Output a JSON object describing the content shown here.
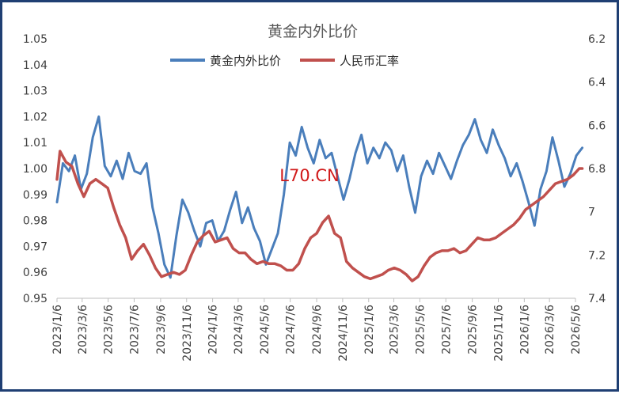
{
  "chart_data": {
    "type": "line",
    "title": "黄金内外比价",
    "watermark": "L70.CN",
    "legend_position": "top",
    "grid": false,
    "x_tick_labels": [
      "2023/1/6",
      "2023/3/6",
      "2023/5/6",
      "2023/7/6",
      "2023/9/6",
      "2023/11/6",
      "2024/1/6",
      "2024/3/6",
      "2024/5/6",
      "2024/7/6",
      "2024/9/6",
      "2024/11/6",
      "2025/1/6",
      "2025/3/6",
      "2025/5/6",
      "2025/7/6",
      "2025/9/6",
      "2025/11/6",
      "2026/1/6",
      "2026/3/6",
      "2026/5/6"
    ],
    "left_axis": {
      "min": 0.95,
      "max": 1.05,
      "tick_labels": [
        "1.05",
        "1.04",
        "1.03",
        "1.02",
        "1.01",
        "1.00",
        "0.99",
        "0.98",
        "0.97",
        "0.96",
        "0.95"
      ]
    },
    "right_axis": {
      "min": 6.2,
      "max": 7.4,
      "reversed": true,
      "tick_labels": [
        "6.2",
        "6.4",
        "6.6",
        "6.8",
        "7",
        "7.2",
        "7.4"
      ]
    },
    "series": [
      {
        "name": "黄金内外比价",
        "color": "#4a7ebb",
        "axis": "left",
        "points": [
          [
            "2023-01-06",
            0.987
          ],
          [
            "2023-01-20",
            1.002
          ],
          [
            "2023-02-03",
            0.999
          ],
          [
            "2023-02-17",
            1.005
          ],
          [
            "2023-03-03",
            0.992
          ],
          [
            "2023-03-17",
            0.998
          ],
          [
            "2023-03-31",
            1.012
          ],
          [
            "2023-04-14",
            1.02
          ],
          [
            "2023-04-28",
            1.001
          ],
          [
            "2023-05-12",
            0.997
          ],
          [
            "2023-05-26",
            1.003
          ],
          [
            "2023-06-09",
            0.996
          ],
          [
            "2023-06-23",
            1.006
          ],
          [
            "2023-07-07",
            0.999
          ],
          [
            "2023-07-21",
            0.998
          ],
          [
            "2023-08-04",
            1.002
          ],
          [
            "2023-08-18",
            0.985
          ],
          [
            "2023-09-01",
            0.975
          ],
          [
            "2023-09-15",
            0.963
          ],
          [
            "2023-09-29",
            0.958
          ],
          [
            "2023-10-13",
            0.974
          ],
          [
            "2023-10-27",
            0.988
          ],
          [
            "2023-11-10",
            0.983
          ],
          [
            "2023-11-24",
            0.976
          ],
          [
            "2023-12-08",
            0.97
          ],
          [
            "2023-12-22",
            0.979
          ],
          [
            "2024-01-05",
            0.98
          ],
          [
            "2024-01-19",
            0.972
          ],
          [
            "2024-02-02",
            0.976
          ],
          [
            "2024-02-16",
            0.984
          ],
          [
            "2024-03-01",
            0.991
          ],
          [
            "2024-03-15",
            0.979
          ],
          [
            "2024-03-29",
            0.985
          ],
          [
            "2024-04-12",
            0.977
          ],
          [
            "2024-04-26",
            0.972
          ],
          [
            "2024-05-10",
            0.963
          ],
          [
            "2024-05-24",
            0.969
          ],
          [
            "2024-06-07",
            0.975
          ],
          [
            "2024-06-21",
            0.99
          ],
          [
            "2024-07-05",
            1.01
          ],
          [
            "2024-07-19",
            1.005
          ],
          [
            "2024-08-02",
            1.016
          ],
          [
            "2024-08-16",
            1.008
          ],
          [
            "2024-08-30",
            1.002
          ],
          [
            "2024-09-13",
            1.011
          ],
          [
            "2024-09-27",
            1.004
          ],
          [
            "2024-10-11",
            1.006
          ],
          [
            "2024-10-25",
            0.997
          ],
          [
            "2024-11-08",
            0.988
          ],
          [
            "2024-11-22",
            0.996
          ],
          [
            "2024-12-06",
            1.006
          ],
          [
            "2024-12-20",
            1.013
          ],
          [
            "2025-01-03",
            1.002
          ],
          [
            "2025-01-17",
            1.008
          ],
          [
            "2025-01-31",
            1.004
          ],
          [
            "2025-02-14",
            1.01
          ],
          [
            "2025-02-28",
            1.007
          ],
          [
            "2025-03-14",
            0.999
          ],
          [
            "2025-03-28",
            1.005
          ],
          [
            "2025-04-11",
            0.993
          ],
          [
            "2025-04-25",
            0.983
          ],
          [
            "2025-05-09",
            0.997
          ],
          [
            "2025-05-23",
            1.003
          ],
          [
            "2025-06-06",
            0.998
          ],
          [
            "2025-06-20",
            1.006
          ],
          [
            "2025-07-04",
            1.001
          ],
          [
            "2025-07-18",
            0.996
          ],
          [
            "2025-08-01",
            1.003
          ],
          [
            "2025-08-15",
            1.009
          ],
          [
            "2025-08-29",
            1.013
          ],
          [
            "2025-09-12",
            1.019
          ],
          [
            "2025-09-26",
            1.011
          ],
          [
            "2025-10-10",
            1.006
          ],
          [
            "2025-10-24",
            1.015
          ],
          [
            "2025-11-07",
            1.009
          ],
          [
            "2025-11-21",
            1.004
          ],
          [
            "2025-12-05",
            0.997
          ],
          [
            "2025-12-19",
            1.002
          ],
          [
            "2026-01-02",
            0.995
          ],
          [
            "2026-01-16",
            0.987
          ],
          [
            "2026-01-30",
            0.978
          ],
          [
            "2026-02-13",
            0.992
          ],
          [
            "2026-02-27",
            0.999
          ],
          [
            "2026-03-13",
            1.012
          ],
          [
            "2026-03-27",
            1.003
          ],
          [
            "2026-04-10",
            0.993
          ],
          [
            "2026-04-24",
            0.998
          ],
          [
            "2026-05-08",
            1.005
          ],
          [
            "2026-05-22",
            1.008
          ]
        ]
      },
      {
        "name": "人民币汇率",
        "color": "#c0504d",
        "axis": "right",
        "points": [
          [
            "2023-01-06",
            6.85
          ],
          [
            "2023-01-13",
            6.72
          ],
          [
            "2023-01-27",
            6.77
          ],
          [
            "2023-02-10",
            6.79
          ],
          [
            "2023-02-24",
            6.87
          ],
          [
            "2023-03-10",
            6.93
          ],
          [
            "2023-03-24",
            6.87
          ],
          [
            "2023-04-07",
            6.85
          ],
          [
            "2023-04-21",
            6.87
          ],
          [
            "2023-05-05",
            6.89
          ],
          [
            "2023-05-19",
            6.98
          ],
          [
            "2023-06-02",
            7.06
          ],
          [
            "2023-06-16",
            7.12
          ],
          [
            "2023-06-30",
            7.22
          ],
          [
            "2023-07-14",
            7.18
          ],
          [
            "2023-07-28",
            7.15
          ],
          [
            "2023-08-11",
            7.2
          ],
          [
            "2023-08-25",
            7.26
          ],
          [
            "2023-09-08",
            7.3
          ],
          [
            "2023-09-22",
            7.29
          ],
          [
            "2023-10-06",
            7.28
          ],
          [
            "2023-10-20",
            7.29
          ],
          [
            "2023-11-03",
            7.27
          ],
          [
            "2023-11-17",
            7.2
          ],
          [
            "2023-12-01",
            7.14
          ],
          [
            "2023-12-15",
            7.11
          ],
          [
            "2023-12-29",
            7.09
          ],
          [
            "2024-01-12",
            7.14
          ],
          [
            "2024-01-26",
            7.13
          ],
          [
            "2024-02-09",
            7.12
          ],
          [
            "2024-02-23",
            7.17
          ],
          [
            "2024-03-08",
            7.19
          ],
          [
            "2024-03-22",
            7.19
          ],
          [
            "2024-04-05",
            7.22
          ],
          [
            "2024-04-19",
            7.24
          ],
          [
            "2024-05-03",
            7.23
          ],
          [
            "2024-05-17",
            7.24
          ],
          [
            "2024-05-31",
            7.24
          ],
          [
            "2024-06-14",
            7.25
          ],
          [
            "2024-06-28",
            7.27
          ],
          [
            "2024-07-12",
            7.27
          ],
          [
            "2024-07-26",
            7.24
          ],
          [
            "2024-08-09",
            7.17
          ],
          [
            "2024-08-23",
            7.12
          ],
          [
            "2024-09-06",
            7.1
          ],
          [
            "2024-09-20",
            7.05
          ],
          [
            "2024-10-04",
            7.02
          ],
          [
            "2024-10-18",
            7.1
          ],
          [
            "2024-11-01",
            7.12
          ],
          [
            "2024-11-15",
            7.23
          ],
          [
            "2024-11-29",
            7.26
          ],
          [
            "2024-12-13",
            7.28
          ],
          [
            "2024-12-27",
            7.3
          ],
          [
            "2025-01-10",
            7.31
          ],
          [
            "2025-01-24",
            7.3
          ],
          [
            "2025-02-07",
            7.29
          ],
          [
            "2025-02-21",
            7.27
          ],
          [
            "2025-03-07",
            7.26
          ],
          [
            "2025-03-21",
            7.27
          ],
          [
            "2025-04-04",
            7.29
          ],
          [
            "2025-04-18",
            7.32
          ],
          [
            "2025-05-02",
            7.3
          ],
          [
            "2025-05-16",
            7.25
          ],
          [
            "2025-05-30",
            7.21
          ],
          [
            "2025-06-13",
            7.19
          ],
          [
            "2025-06-27",
            7.18
          ],
          [
            "2025-07-11",
            7.18
          ],
          [
            "2025-07-25",
            7.17
          ],
          [
            "2025-08-08",
            7.19
          ],
          [
            "2025-08-22",
            7.18
          ],
          [
            "2025-09-05",
            7.15
          ],
          [
            "2025-09-19",
            7.12
          ],
          [
            "2025-10-03",
            7.13
          ],
          [
            "2025-10-17",
            7.13
          ],
          [
            "2025-10-31",
            7.12
          ],
          [
            "2025-11-14",
            7.1
          ],
          [
            "2025-11-28",
            7.08
          ],
          [
            "2025-12-12",
            7.06
          ],
          [
            "2025-12-26",
            7.03
          ],
          [
            "2026-01-09",
            6.99
          ],
          [
            "2026-01-23",
            6.97
          ],
          [
            "2026-02-06",
            6.95
          ],
          [
            "2026-02-20",
            6.93
          ],
          [
            "2026-03-06",
            6.9
          ],
          [
            "2026-03-20",
            6.87
          ],
          [
            "2026-04-03",
            6.86
          ],
          [
            "2026-04-17",
            6.85
          ],
          [
            "2026-05-01",
            6.83
          ],
          [
            "2026-05-15",
            6.8
          ],
          [
            "2026-05-22",
            6.8
          ]
        ]
      }
    ]
  }
}
